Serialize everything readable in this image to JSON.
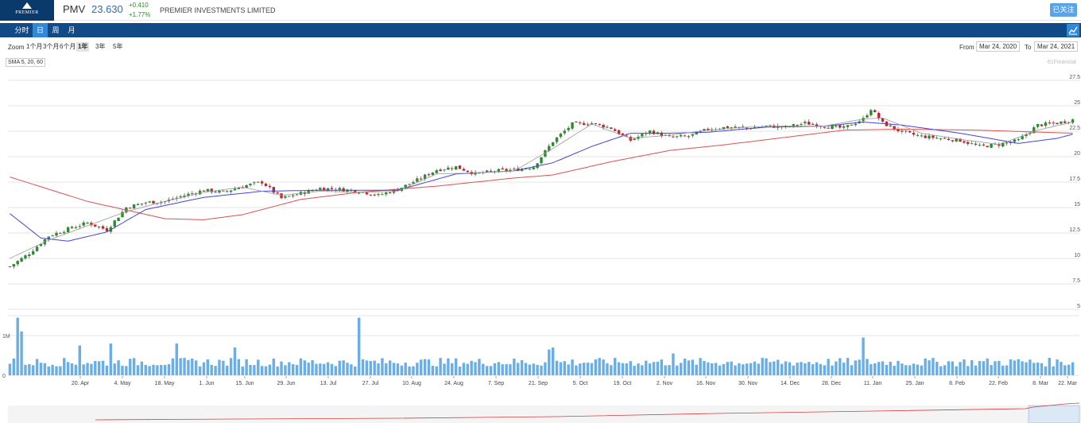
{
  "header": {
    "logo_text": "PREMIER",
    "ticker": "PMV",
    "price": "23.630",
    "change": "+0.410",
    "change_pct": "+1.77%",
    "company": "PREMIER INVESTMENTS LIMITED",
    "follow_label": "已关注"
  },
  "nav": {
    "tabs": [
      {
        "label": "分时",
        "active": false
      },
      {
        "label": "日",
        "active": true
      },
      {
        "label": "周",
        "active": false
      },
      {
        "label": "月",
        "active": false
      }
    ],
    "icon": "line-chart-icon"
  },
  "zoom": {
    "label": "Zoom",
    "buttons": [
      {
        "label": "1个月",
        "active": false
      },
      {
        "label": "3个月",
        "active": false
      },
      {
        "label": "6个月",
        "active": false
      },
      {
        "label": "1年",
        "active": true
      },
      {
        "label": "3年",
        "active": false
      },
      {
        "label": "5年",
        "active": false
      }
    ],
    "from_label": "From",
    "from_date": "Mar 24, 2020",
    "to_label": "To",
    "to_date": "Mar 24, 2021"
  },
  "indicator_label": "SMA 5, 20, 60",
  "credit": "61Financial",
  "colors": {
    "up": "#2e8b2e",
    "down": "#c0282d",
    "sma_short": "#999999",
    "sma_mid": "#4444dd",
    "sma_long": "#e05050",
    "volume": "#6aaee8"
  },
  "chart_data": {
    "type": "candlestick",
    "y_axis": {
      "min": 5,
      "max": 27.5,
      "ticks": [
        "27.5",
        "25",
        "22.5",
        "20",
        "17.5",
        "15",
        "12.5",
        "10",
        "7.5",
        "5"
      ],
      "position": "right"
    },
    "x_axis": {
      "ticks": [
        "20. Apr",
        "4. May",
        "18. May",
        "1. Jun",
        "15. Jun",
        "29. Jun",
        "13. Jul",
        "27. Jul",
        "10. Aug",
        "24. Aug",
        "7. Sep",
        "21. Sep",
        "5. Oct",
        "19. Oct",
        "2. Nov",
        "16. Nov",
        "30. Nov",
        "14. Dec",
        "28. Dec",
        "11. Jan",
        "25. Jan",
        "8. Feb",
        "22. Feb",
        "8. Mar",
        "22. Mar"
      ]
    },
    "price_anchors": [
      [
        0,
        9.2
      ],
      [
        5,
        10.5
      ],
      [
        10,
        12.2
      ],
      [
        15,
        12.9
      ],
      [
        20,
        13.5
      ],
      [
        25,
        12.8
      ],
      [
        30,
        15.0
      ],
      [
        35,
        15.5
      ],
      [
        40,
        15.6
      ],
      [
        45,
        16.2
      ],
      [
        50,
        16.7
      ],
      [
        55,
        16.5
      ],
      [
        60,
        17.1
      ],
      [
        65,
        17.5
      ],
      [
        70,
        15.9
      ],
      [
        75,
        16.4
      ],
      [
        80,
        16.9
      ],
      [
        85,
        16.8
      ],
      [
        90,
        16.6
      ],
      [
        95,
        16.2
      ],
      [
        100,
        16.8
      ],
      [
        105,
        17.7
      ],
      [
        110,
        18.7
      ],
      [
        115,
        19.0
      ],
      [
        120,
        18.3
      ],
      [
        125,
        18.6
      ],
      [
        130,
        18.7
      ],
      [
        135,
        19.0
      ],
      [
        140,
        21.5
      ],
      [
        145,
        23.2
      ],
      [
        150,
        23.3
      ],
      [
        155,
        22.8
      ],
      [
        160,
        21.6
      ],
      [
        165,
        22.5
      ],
      [
        170,
        21.9
      ],
      [
        175,
        22.0
      ],
      [
        180,
        22.7
      ],
      [
        185,
        22.9
      ],
      [
        190,
        22.8
      ],
      [
        195,
        23.0
      ],
      [
        200,
        22.9
      ],
      [
        205,
        23.3
      ],
      [
        210,
        23.0
      ],
      [
        215,
        22.8
      ],
      [
        220,
        23.7
      ],
      [
        222,
        24.7
      ],
      [
        225,
        23.3
      ],
      [
        230,
        22.4
      ],
      [
        235,
        22.0
      ],
      [
        240,
        21.8
      ],
      [
        245,
        21.6
      ],
      [
        250,
        21.0
      ],
      [
        255,
        21.2
      ],
      [
        260,
        21.6
      ],
      [
        265,
        23.1
      ],
      [
        270,
        23.3
      ],
      [
        274,
        23.63
      ]
    ],
    "sma_5_anchors": [
      [
        0,
        10.0
      ],
      [
        10,
        11.8
      ],
      [
        20,
        13.2
      ],
      [
        30,
        14.6
      ],
      [
        40,
        15.6
      ],
      [
        50,
        16.5
      ],
      [
        60,
        17.0
      ],
      [
        70,
        16.2
      ],
      [
        80,
        16.6
      ],
      [
        90,
        16.5
      ],
      [
        100,
        16.6
      ],
      [
        110,
        18.3
      ],
      [
        120,
        18.4
      ],
      [
        130,
        18.6
      ],
      [
        140,
        20.8
      ],
      [
        150,
        23.2
      ],
      [
        160,
        21.8
      ],
      [
        170,
        22.1
      ],
      [
        180,
        22.6
      ],
      [
        190,
        22.9
      ],
      [
        200,
        23.0
      ],
      [
        210,
        23.0
      ],
      [
        220,
        23.7
      ],
      [
        225,
        23.8
      ],
      [
        235,
        22.3
      ],
      [
        245,
        21.7
      ],
      [
        255,
        21.2
      ],
      [
        265,
        22.6
      ],
      [
        274,
        23.4
      ]
    ],
    "sma_20_anchors": [
      [
        0,
        14.4
      ],
      [
        8,
        12.0
      ],
      [
        15,
        11.7
      ],
      [
        25,
        12.6
      ],
      [
        35,
        14.8
      ],
      [
        50,
        16.0
      ],
      [
        65,
        16.6
      ],
      [
        80,
        16.7
      ],
      [
        100,
        16.7
      ],
      [
        115,
        18.3
      ],
      [
        130,
        18.6
      ],
      [
        140,
        19.4
      ],
      [
        150,
        21.0
      ],
      [
        160,
        22.3
      ],
      [
        170,
        22.3
      ],
      [
        180,
        22.4
      ],
      [
        195,
        22.9
      ],
      [
        210,
        23.0
      ],
      [
        220,
        23.4
      ],
      [
        230,
        23.1
      ],
      [
        245,
        22.3
      ],
      [
        260,
        21.3
      ],
      [
        270,
        21.8
      ],
      [
        274,
        22.2
      ]
    ],
    "sma_60_anchors": [
      [
        0,
        18.0
      ],
      [
        20,
        15.6
      ],
      [
        40,
        13.9
      ],
      [
        50,
        13.8
      ],
      [
        60,
        14.3
      ],
      [
        75,
        15.8
      ],
      [
        90,
        16.5
      ],
      [
        110,
        17.1
      ],
      [
        130,
        17.9
      ],
      [
        140,
        18.2
      ],
      [
        155,
        19.5
      ],
      [
        170,
        20.6
      ],
      [
        185,
        21.2
      ],
      [
        200,
        21.9
      ],
      [
        215,
        22.6
      ],
      [
        230,
        22.7
      ],
      [
        250,
        22.6
      ],
      [
        274,
        22.3
      ]
    ],
    "volume": {
      "unit": "M",
      "ticks": [
        "1M",
        "0"
      ],
      "range": [
        0,
        1.5
      ],
      "spikes": [
        [
          2,
          1.45
        ],
        [
          3,
          1.1
        ],
        [
          18,
          0.75
        ],
        [
          26,
          0.8
        ],
        [
          43,
          0.8
        ],
        [
          58,
          0.7
        ],
        [
          90,
          1.45
        ],
        [
          139,
          0.65
        ],
        [
          140,
          0.7
        ],
        [
          171,
          0.55
        ],
        [
          220,
          0.95
        ],
        [
          258,
          0.4
        ]
      ]
    }
  }
}
